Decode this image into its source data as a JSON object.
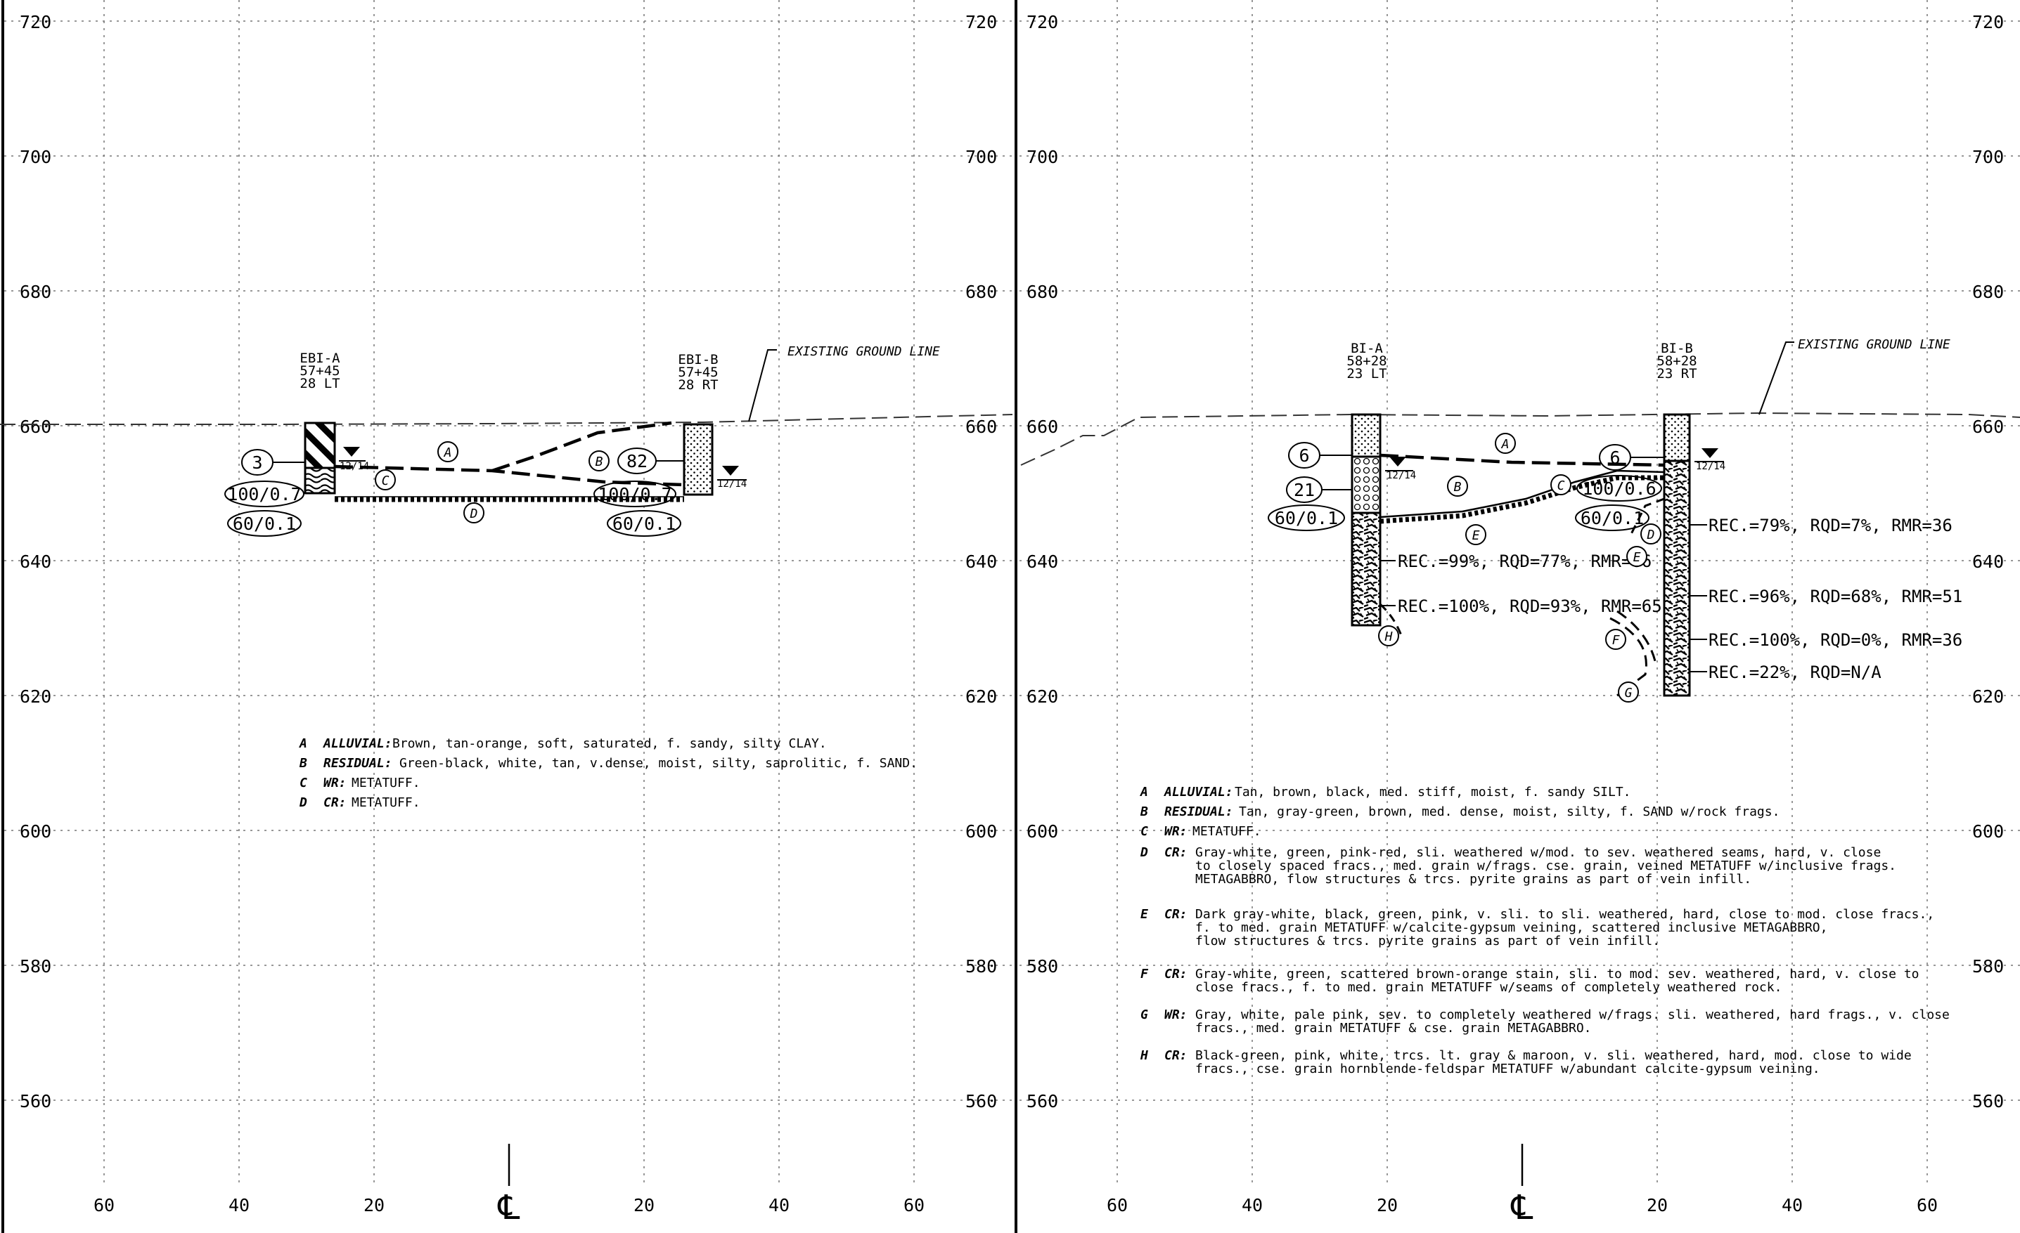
{
  "panels": [
    {
      "id": "left",
      "elevation_labels": [
        "720",
        "700",
        "680",
        "660",
        "640",
        "620",
        "600",
        "580",
        "560"
      ],
      "offset_labels": [
        "60",
        "40",
        "20",
        "℄",
        "20",
        "40",
        "60"
      ],
      "ground_line_label": "EXISTING GROUND LINE",
      "borings": [
        {
          "name": "EBI-A",
          "station": "57+45",
          "offset": "28 LT",
          "water_level": "12/14",
          "blow_counts": [
            "3",
            "100/0.7",
            "60/0.1"
          ]
        },
        {
          "name": "EBI-B",
          "station": "57+45",
          "offset": "28 RT",
          "water_level": "12/14",
          "blow_counts": [
            "82",
            "100/0.7",
            "60/0.1"
          ]
        }
      ],
      "strata_tags": [
        "A",
        "B",
        "C",
        "D"
      ],
      "core_notes": [],
      "legend": [
        {
          "letter": "A",
          "label": "ALLUVIAL:",
          "text": "Brown, tan-orange, soft, saturated, f. sandy, silty CLAY."
        },
        {
          "letter": "B",
          "label": "RESIDUAL:",
          "text": "Green-black, white, tan, v.dense, moist, silty, saprolitic, f. SAND."
        },
        {
          "letter": "C",
          "label": "WR:",
          "text": "METATUFF."
        },
        {
          "letter": "D",
          "label": "CR:",
          "text": "METATUFF."
        }
      ]
    },
    {
      "id": "right",
      "elevation_labels": [
        "720",
        "700",
        "680",
        "660",
        "640",
        "620",
        "600",
        "580",
        "560"
      ],
      "offset_labels": [
        "60",
        "40",
        "20",
        "℄",
        "20",
        "40",
        "60"
      ],
      "ground_line_label": "EXISTING GROUND LINE",
      "borings": [
        {
          "name": "BI-A",
          "station": "58+28",
          "offset": "23 LT",
          "water_level": "12/14",
          "blow_counts": [
            "6",
            "21",
            "60/0.1"
          ]
        },
        {
          "name": "BI-B",
          "station": "58+28",
          "offset": "23 RT",
          "water_level": "12/14",
          "blow_counts": [
            "6",
            "100/0.6",
            "60/0.1"
          ]
        }
      ],
      "strata_tags": [
        "A",
        "B",
        "C",
        "D",
        "E",
        "E",
        "F",
        "G",
        "H"
      ],
      "core_notes": [
        "REC.=99%, RQD=77%, RMR=66",
        "REC.=100%, RQD=93%, RMR=65",
        "REC.=79%, RQD=7%, RMR=36",
        "REC.=96%, RQD=68%, RMR=51",
        "REC.=100%, RQD=0%, RMR=36",
        "REC.=22%, RQD=N/A"
      ],
      "legend": [
        {
          "letter": "A",
          "label": "ALLUVIAL:",
          "lines": [
            "Tan, brown, black, med. stiff, moist, f. sandy SILT."
          ]
        },
        {
          "letter": "B",
          "label": "RESIDUAL:",
          "lines": [
            "Tan, gray-green, brown, med. dense, moist, silty, f. SAND w/rock frags."
          ]
        },
        {
          "letter": "C",
          "label": "WR:",
          "lines": [
            "METATUFF."
          ]
        },
        {
          "letter": "D",
          "label": "CR:",
          "lines": [
            "Gray-white, green, pink-red, sli. weathered w/mod. to sev. weathered seams, hard, v. close",
            "to closely spaced fracs., med. grain w/frags. cse. grain, veined METATUFF w/inclusive frags.",
            "METAGABBRO, flow structures & trcs. pyrite grains as part of vein infill."
          ]
        },
        {
          "letter": "E",
          "label": "CR:",
          "lines": [
            "Dark gray-white, black, green, pink, v. sli. to sli. weathered, hard, close to mod. close fracs.,",
            "f. to med. grain METATUFF w/calcite-gypsum veining, scattered inclusive METAGABBRO,",
            "flow structures & trcs. pyrite grains as part of vein infill."
          ]
        },
        {
          "letter": "F",
          "label": "CR:",
          "lines": [
            "Gray-white, green, scattered brown-orange stain, sli. to mod. sev. weathered, hard, v. close to",
            "close fracs., f. to med. grain METATUFF w/seams of completely weathered rock."
          ]
        },
        {
          "letter": "G",
          "label": "WR:",
          "lines": [
            "Gray, white, pale pink, sev. to completely weathered w/frags. sli. weathered, hard frags., v. close",
            "fracs., med. grain  METATUFF & cse. grain METAGABBRO."
          ]
        },
        {
          "letter": "H",
          "label": "CR:",
          "lines": [
            "Black-green, pink, white, trcs. lt. gray & maroon, v. sli. weathered, hard, mod. close to wide",
            "fracs., cse. grain hornblende-feldspar METATUFF w/abundant calcite-gypsum veining."
          ]
        }
      ]
    }
  ]
}
